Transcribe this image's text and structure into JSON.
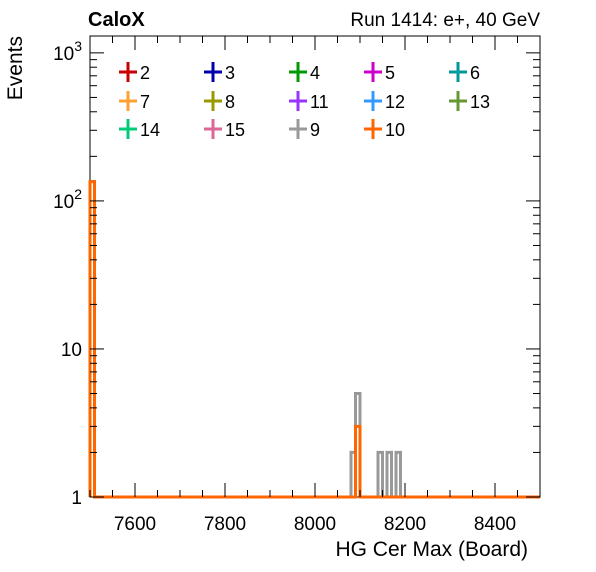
{
  "header": {
    "left_title": "CaloX",
    "right_title": "Run 1414: e+, 40 GeV"
  },
  "chart_data": {
    "type": "histogram-step",
    "xlabel": "HG Cer Max (Board)",
    "ylabel": "Events",
    "xlim": [
      7500,
      8500
    ],
    "ylim": [
      1,
      1300
    ],
    "yscale": "log",
    "x_ticks": [
      7600,
      7800,
      8000,
      8200,
      8400
    ],
    "y_ticks": [
      {
        "value": 1,
        "base": "1",
        "exp": ""
      },
      {
        "value": 10,
        "base": "10",
        "exp": ""
      },
      {
        "value": 100,
        "base": "10",
        "exp": "2"
      },
      {
        "value": 1000,
        "base": "10",
        "exp": "3"
      }
    ],
    "bin_width": 10,
    "legend": {
      "placement": "top",
      "entries": [
        {
          "name": "2",
          "color": "#cc0000"
        },
        {
          "name": "3",
          "color": "#0000aa"
        },
        {
          "name": "4",
          "color": "#009900"
        },
        {
          "name": "5",
          "color": "#cc00cc"
        },
        {
          "name": "6",
          "color": "#009999"
        },
        {
          "name": "7",
          "color": "#ffa030"
        },
        {
          "name": "8",
          "color": "#999900"
        },
        {
          "name": "11",
          "color": "#9933ff"
        },
        {
          "name": "12",
          "color": "#3399ff"
        },
        {
          "name": "13",
          "color": "#669933"
        },
        {
          "name": "14",
          "color": "#00cc77"
        },
        {
          "name": "15",
          "color": "#dd6699"
        },
        {
          "name": "9",
          "color": "#999999"
        },
        {
          "name": "10",
          "color": "#ff6600"
        }
      ]
    },
    "series": [
      {
        "name": "9",
        "color": "#999999",
        "bins": [
          [
            7500,
            135
          ],
          [
            8080,
            2
          ],
          [
            8090,
            5
          ],
          [
            8140,
            2
          ],
          [
            8160,
            2
          ],
          [
            8180,
            2
          ]
        ]
      },
      {
        "name": "10",
        "color": "#ff6600",
        "bins": [
          [
            7500,
            135
          ],
          [
            8090,
            3
          ]
        ]
      }
    ]
  }
}
